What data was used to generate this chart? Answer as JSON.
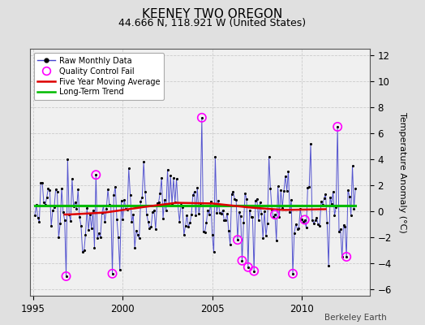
{
  "title": "KEENEY TWO OREGON",
  "subtitle": "44.666 N, 118.921 W (United States)",
  "ylabel": "Temperature Anomaly (°C)",
  "watermark": "Berkeley Earth",
  "x_lim": [
    1994.8,
    2013.8
  ],
  "y_lim": [
    -6.5,
    12.5
  ],
  "y_ticks": [
    -6,
    -4,
    -2,
    0,
    2,
    4,
    6,
    8,
    10,
    12
  ],
  "x_ticks": [
    1995,
    2000,
    2005,
    2010
  ],
  "background_color": "#e0e0e0",
  "plot_background": "#f0f0f0",
  "raw_line_color": "#4444cc",
  "raw_marker_color": "#000000",
  "moving_avg_color": "#dd0000",
  "trend_color": "#00bb00",
  "qc_fail_color": "#ff00ff",
  "title_fontsize": 11,
  "subtitle_fontsize": 9,
  "seed": 12345,
  "n_months": 216,
  "t_start": 1995.083,
  "trend_intercept": 0.42,
  "trend_slope": 0.0
}
